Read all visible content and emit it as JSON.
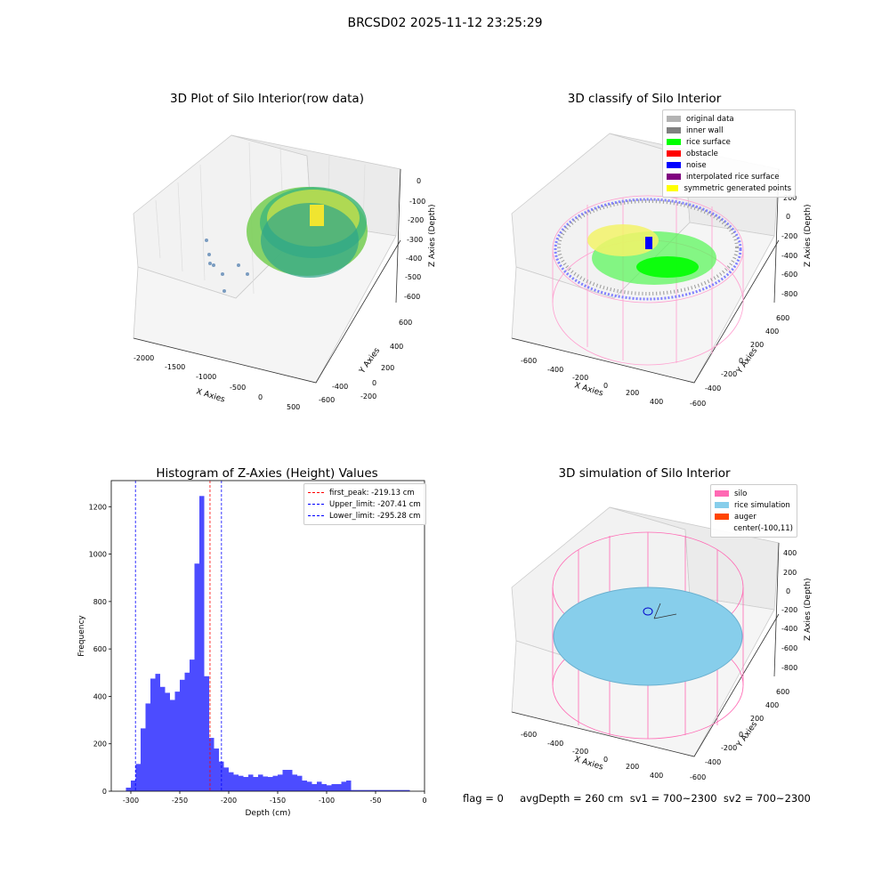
{
  "suptitle": "BRCSD02 2025-11-12 23:25:29",
  "panels": {
    "raw": {
      "title": "3D Plot of Silo Interior(row data)",
      "xlabel": "X Axies",
      "ylabel": "Y Axies",
      "zlabel": "Z Axies (Depth)",
      "xticks": [
        "-2000",
        "-1500",
        "-1000",
        "-500",
        "0",
        "500"
      ],
      "yticks": [
        "600",
        "400",
        "200",
        "0",
        "-200",
        "-400",
        "-600"
      ],
      "zticks": [
        "0",
        "-100",
        "-200",
        "-300",
        "-400",
        "-500",
        "-600"
      ]
    },
    "classify": {
      "title": "3D classify of Silo Interior",
      "xlabel": "X Axies",
      "ylabel": "Y Axies",
      "zlabel": "Z Axies (Depth)",
      "xticks": [
        "-600",
        "-400",
        "-200",
        "0",
        "200",
        "400"
      ],
      "yticks": [
        "600",
        "400",
        "200",
        "0",
        "-200",
        "-400",
        "-600"
      ],
      "zticks": [
        "200",
        "0",
        "-200",
        "-400",
        "-600",
        "-800"
      ],
      "zticks_top": "400",
      "legend": [
        {
          "label": "original data",
          "color": "#b3b3b3"
        },
        {
          "label": "inner wall",
          "color": "#808080"
        },
        {
          "label": "rice surface",
          "color": "#00ff00"
        },
        {
          "label": "obstacle",
          "color": "#ff0000"
        },
        {
          "label": "noise",
          "color": "#0000ff"
        },
        {
          "label": "interpolated rice surface",
          "color": "#800080"
        },
        {
          "label": "symmetric generated points",
          "color": "#ffff00"
        }
      ]
    },
    "simulation": {
      "title": "3D simulation of Silo Interior",
      "xlabel": "X Axies",
      "ylabel": "Y Axies",
      "zlabel": "Z Axies (Depth)",
      "xticks": [
        "-600",
        "-400",
        "-200",
        "0",
        "200",
        "400"
      ],
      "yticks": [
        "600",
        "400",
        "200",
        "0",
        "-200",
        "-400",
        "-600"
      ],
      "zticks": [
        "400",
        "200",
        "0",
        "-200",
        "-400",
        "-600",
        "-800"
      ],
      "legend": [
        {
          "label": "silo",
          "color": "#ff69b4"
        },
        {
          "label": "rice simulation",
          "color": "#87ceeb"
        },
        {
          "label": "auger",
          "color": "#ff4500"
        },
        {
          "label": "center(-100,11)",
          "color": ""
        }
      ]
    }
  },
  "status": "flag = 0     avgDepth = 260 cm  sv1 = 700~2300  sv2 = 700~2300",
  "chart_data": {
    "type": "bar",
    "title": "Histogram of Z-Axies (Height) Values",
    "xlabel": "Depth (cm)",
    "ylabel": "Frequency",
    "xlim": [
      -320,
      0
    ],
    "ylim": [
      0,
      1310
    ],
    "xticks": [
      -300,
      -250,
      -200,
      -150,
      -100,
      -50,
      0
    ],
    "yticks": [
      0,
      200,
      400,
      600,
      800,
      1000,
      1200
    ],
    "bar_color": "#0000ff",
    "bin_width": 5,
    "bin_starts": [
      -305,
      -300,
      -295,
      -290,
      -285,
      -280,
      -275,
      -270,
      -265,
      -260,
      -255,
      -250,
      -245,
      -240,
      -235,
      -230,
      -225,
      -220,
      -215,
      -210,
      -205,
      -200,
      -195,
      -190,
      -185,
      -180,
      -175,
      -170,
      -165,
      -160,
      -155,
      -150,
      -145,
      -140,
      -135,
      -130,
      -125,
      -120,
      -115,
      -110,
      -105,
      -100,
      -95,
      -90,
      -85,
      -80,
      -75,
      -70,
      -65,
      -60,
      -55,
      -50,
      -45,
      -40,
      -35,
      -30,
      -25,
      -20
    ],
    "values": [
      15,
      45,
      115,
      265,
      370,
      475,
      495,
      440,
      415,
      385,
      420,
      470,
      500,
      555,
      960,
      1245,
      485,
      225,
      180,
      125,
      100,
      80,
      70,
      65,
      60,
      70,
      60,
      70,
      62,
      60,
      65,
      70,
      90,
      90,
      70,
      65,
      45,
      40,
      30,
      40,
      30,
      25,
      30,
      30,
      40,
      45,
      5,
      5,
      5,
      5,
      5,
      5,
      5,
      5,
      5,
      5,
      5,
      5
    ],
    "reference_lines": [
      {
        "label": "first_peak: -219.13 cm",
        "x": -219.13,
        "color": "#ff0000"
      },
      {
        "label": "Upper_limit: -207.41 cm",
        "x": -207.41,
        "color": "#0000ff"
      },
      {
        "label": "Lower_limit: -295.28 cm",
        "x": -295.28,
        "color": "#0000ff"
      }
    ],
    "legend_position": "top-right"
  }
}
